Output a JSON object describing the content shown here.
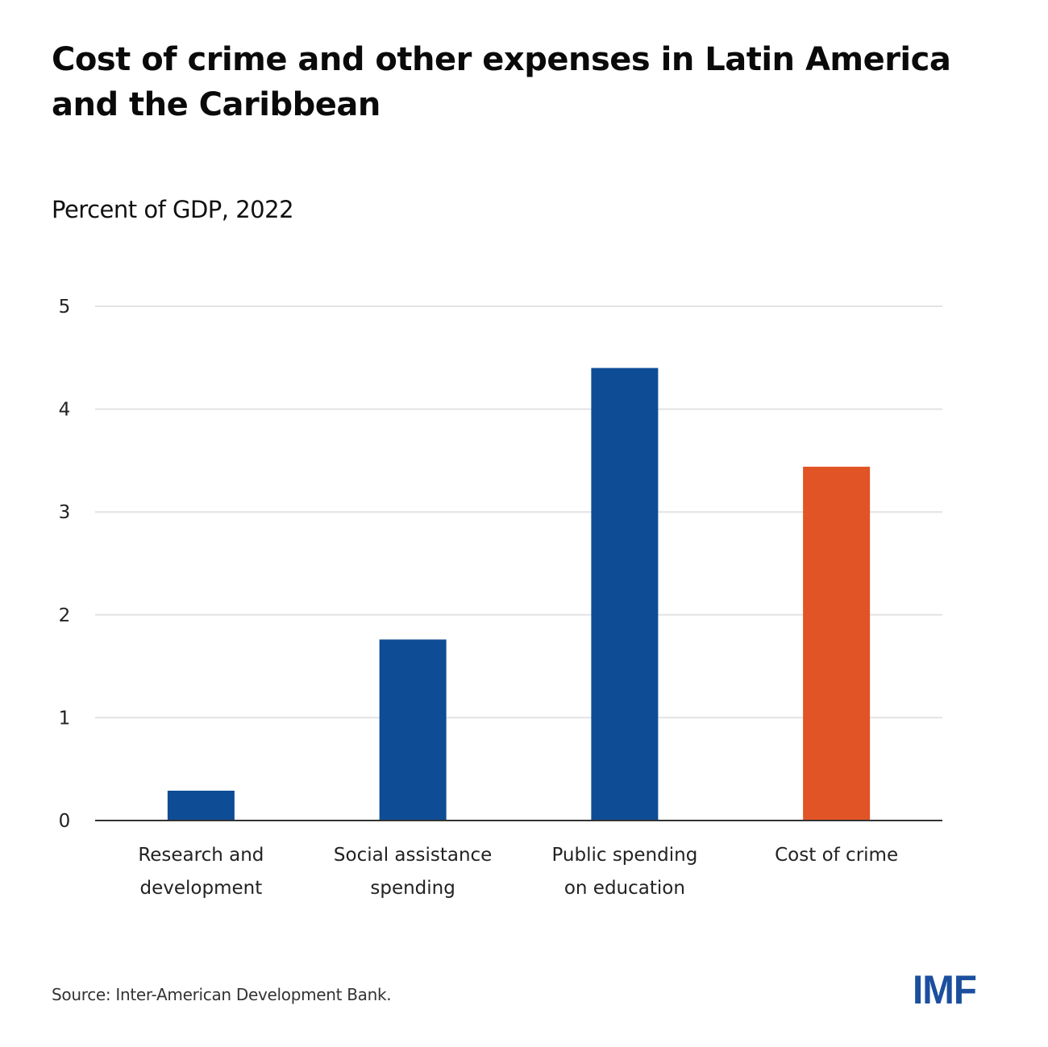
{
  "header": {
    "title": "Cost of crime and other expenses in Latin America and the Caribbean",
    "subtitle": "Percent of GDP, 2022"
  },
  "footer": {
    "source": "Source: Inter-American Development Bank.",
    "logo": "IMF"
  },
  "colors": {
    "primary_bar": "#0e4c96",
    "highlight_bar": "#e15426",
    "gridline": "#e3e3e3",
    "axis": "#333333",
    "logo": "#1b4f9e"
  },
  "chart_data": {
    "type": "bar",
    "title": "Cost of crime and other expenses in Latin America and the Caribbean",
    "subtitle": "Percent of GDP, 2022",
    "xlabel": "",
    "ylabel": "Percent of GDP",
    "ylim": [
      0,
      5
    ],
    "yticks": [
      0,
      1,
      2,
      3,
      4,
      5
    ],
    "grid": true,
    "legend": "none",
    "categories": [
      [
        "Research and",
        "development"
      ],
      [
        "Social assistance",
        "spending"
      ],
      [
        "Public spending",
        "on education"
      ],
      [
        "Cost of crime"
      ]
    ],
    "category_names": [
      "Research and development",
      "Social assistance spending",
      "Public spending on education",
      "Cost of crime"
    ],
    "values": [
      0.29,
      1.76,
      4.4,
      3.44
    ],
    "bar_colors": [
      "#0e4c96",
      "#0e4c96",
      "#0e4c96",
      "#e15426"
    ],
    "source": "Source: Inter-American Development Bank."
  }
}
